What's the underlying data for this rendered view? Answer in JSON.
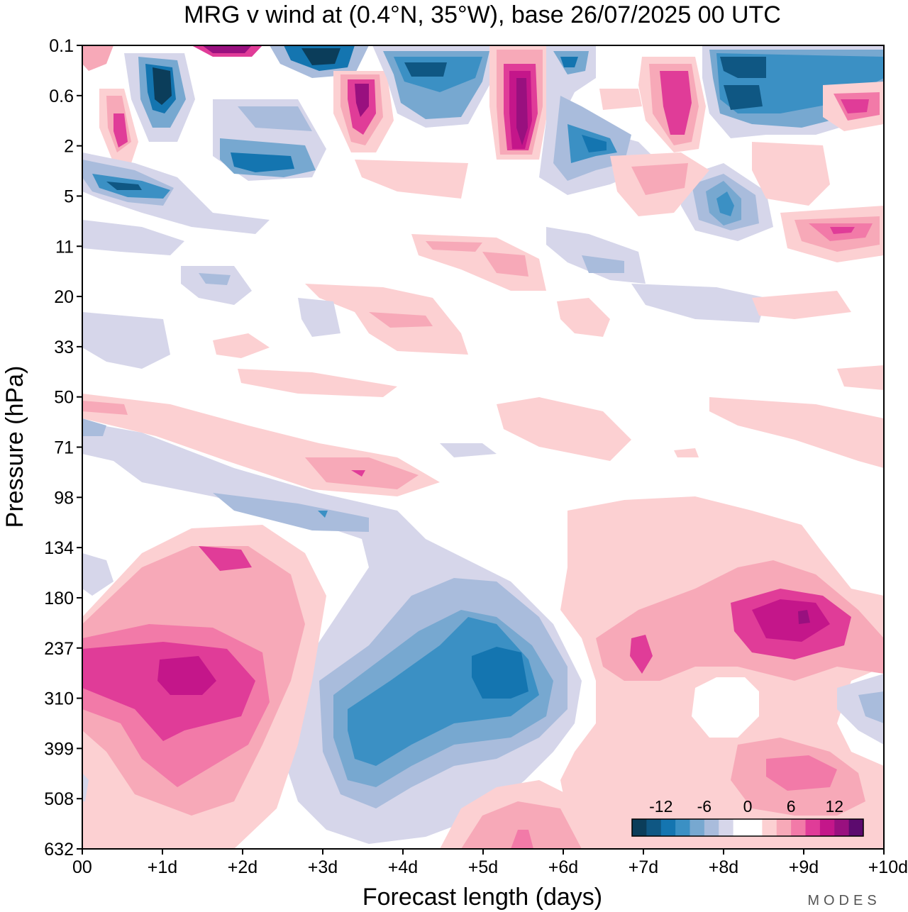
{
  "chart_data": {
    "type": "heatmap",
    "title": "MRG v wind at (0.4°N, 35°W),  base 26/07/2025  00 UTC",
    "xlabel": "Forecast length (days)",
    "ylabel": "Pressure (hPa)",
    "x_ticks": [
      "00",
      "+1d",
      "+2d",
      "+3d",
      "+4d",
      "+5d",
      "+6d",
      "+7d",
      "+8d",
      "+9d",
      "+10d"
    ],
    "y_ticks": [
      "0.1",
      "0.6",
      "2",
      "5",
      "11",
      "20",
      "33",
      "50",
      "71",
      "98",
      "134",
      "180",
      "237",
      "310",
      "399",
      "508",
      "632"
    ],
    "xlim_days": [
      0,
      10
    ],
    "colorbar": {
      "labels": [
        "-12",
        "-6",
        "0",
        "6",
        "12"
      ],
      "levels": [
        -16,
        -14,
        -12,
        -10,
        -8,
        -6,
        -4,
        -2,
        0,
        2,
        4,
        6,
        8,
        10,
        12,
        14,
        16
      ],
      "colors": [
        "#0b3d5a",
        "#0f5783",
        "#1475b0",
        "#3b90c4",
        "#77a8d0",
        "#a9bcdc",
        "#d6d6ea",
        "#ffffff",
        "#ffffff",
        "#fcd0d2",
        "#f7a9b8",
        "#f27aa8",
        "#e03c98",
        "#c4168a",
        "#99107f",
        "#5c0a6e"
      ]
    },
    "features": [
      {
        "day": 1.1,
        "level": "310",
        "value": 11
      },
      {
        "day": 3.7,
        "level": "399",
        "value": -10
      },
      {
        "day": 5.3,
        "level": "310",
        "value": -12
      },
      {
        "day": 9.0,
        "level": "237",
        "value": 11
      },
      {
        "day": 9.0,
        "level": "399",
        "value": 7
      },
      {
        "day": 5.5,
        "level": "632",
        "value": 7
      },
      {
        "day": 1.6,
        "level": "134",
        "value": 7
      },
      {
        "day": 5.5,
        "level": "0.6",
        "value": 13
      },
      {
        "day": 3.5,
        "level": "0.6",
        "value": 11
      },
      {
        "day": 1.0,
        "level": "0.6",
        "value": -15
      },
      {
        "day": 3.0,
        "level": "0.1",
        "value": -14
      },
      {
        "day": 4.5,
        "level": "0.1",
        "value": -12
      },
      {
        "day": 8.0,
        "level": "0.1",
        "value": -12
      },
      {
        "day": 8.0,
        "level": "5",
        "value": -10
      },
      {
        "day": 6.4,
        "level": "2",
        "value": -10
      },
      {
        "day": 0.5,
        "level": "5",
        "value": -13
      },
      {
        "day": 2.0,
        "level": "2",
        "value": -11
      },
      {
        "day": 7.5,
        "level": "0.6",
        "value": 10
      },
      {
        "day": 9.5,
        "level": "0.6",
        "value": 10
      },
      {
        "day": 9.5,
        "level": "11",
        "value": 9
      }
    ]
  },
  "branding": "MODES"
}
